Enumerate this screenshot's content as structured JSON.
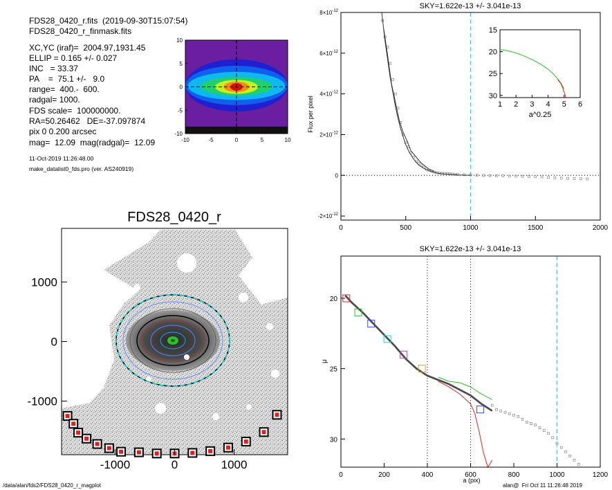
{
  "header_info": {
    "line1": "FDS28_0420_r.fits  (2019-09-30T15:07:54)",
    "line2": "FDS28_0420_r_finmask.fits",
    "params": [
      "XC,YC (iraf)=  2004.97,1931.45",
      "ELLIP = 0.165 +/- 0.027",
      "INC   = 33.37",
      "PA    =  75.1 +/-   9.0",
      "range=  400.-  600.",
      "radgal= 1000.",
      "FDS scale=  100000000.",
      "RA=50.26462   DE=-37.097874",
      "pix 0 0.200 arcsec",
      "mag=  12.09  mag(radgal)=  12.09"
    ],
    "date": "11-Oct-2019 11:26:48.00",
    "program": "make_datalist0_fds.pro (ver. AS240919)"
  },
  "footer": {
    "left": "/data/alan/fds2/FDS28_0420_r_magplot",
    "right": "alan@  Fri Oct 11 11:26:48 2019"
  },
  "colors": {
    "cyan": "#00e0e0",
    "green": "#2fc02f",
    "red": "#e02020",
    "blue": "#3050e0",
    "magenta": "#d030d0",
    "gray": "#909090"
  },
  "chart_data": [
    {
      "id": "contour_map",
      "type": "heatmap",
      "xlim": [
        -10,
        10
      ],
      "ylim": [
        -10,
        10
      ],
      "xticks": [
        "-10",
        "-5",
        "0",
        "5",
        "10"
      ],
      "yticks": [
        "-10",
        "-5",
        "0",
        "5",
        "10"
      ],
      "cross_color": "#000000"
    },
    {
      "id": "galaxy_image",
      "type": "heatmap",
      "title": "FDS28_0420_r",
      "xlim": [
        -1900,
        1900
      ],
      "ylim": [
        -1900,
        1900
      ],
      "xticks": [
        "-1000",
        "0",
        "1000"
      ],
      "yticks": [
        "-1000",
        "0",
        "1000"
      ],
      "markers_x": [
        -1800,
        -1700,
        -1620,
        -1480,
        -1300,
        -1100,
        -900,
        -600,
        -300,
        0,
        300,
        600,
        900,
        1200,
        1500,
        1720
      ],
      "markers_y": [
        -1250,
        -1380,
        -1530,
        -1630,
        -1720,
        -1790,
        -1850,
        -1860,
        -1880,
        -1880,
        -1870,
        -1840,
        -1780,
        -1680,
        -1520,
        -1230
      ]
    },
    {
      "id": "flux_profile",
      "type": "line",
      "title": "SKY=1.622e-13 +/- 3.041e-13",
      "xlabel": "",
      "ylabel": "Flux per pixel",
      "xlim": [
        0,
        2000
      ],
      "ylim": [
        -2.2e-12,
        8e-12
      ],
      "xticks": [
        {
          "v": 0,
          "t": "0"
        },
        {
          "v": 500,
          "t": "500"
        },
        {
          "v": 1000,
          "t": "1000"
        },
        {
          "v": 1500,
          "t": "1500"
        },
        {
          "v": 2000,
          "t": "2000"
        }
      ],
      "yticks": [
        {
          "v": -2e-12,
          "m": "-2",
          "e": "-12"
        },
        {
          "v": 0,
          "m": "0",
          "e": ""
        },
        {
          "v": 2e-12,
          "m": "2",
          "e": "-12"
        },
        {
          "v": 4e-12,
          "m": "4",
          "e": "-12"
        },
        {
          "v": 6e-12,
          "m": "6",
          "e": "-12"
        },
        {
          "v": 8e-12,
          "m": "8",
          "e": "-12"
        }
      ],
      "vline": 1000,
      "series": [
        {
          "x": [
            315,
            340,
            360,
            380,
            400,
            420,
            440,
            460,
            480,
            500,
            530,
            560,
            600,
            650,
            700,
            750,
            800,
            900,
            1000
          ],
          "y": [
            8e-12,
            6.6e-12,
            5.7e-12,
            4.8e-12,
            4.1e-12,
            3.4e-12,
            2.8e-12,
            2.3e-12,
            1.9e-12,
            1.5e-12,
            1.1e-12,
            8e-13,
            5e-13,
            3e-13,
            1.8e-13,
            1e-13,
            6e-14,
            2e-14,
            0
          ]
        },
        {
          "x": [
            330,
            360,
            390,
            420,
            450,
            480,
            510,
            540,
            580,
            620,
            680,
            720
          ],
          "y": [
            7.2e-12,
            5.9e-12,
            4.5e-12,
            3.6e-12,
            2.7e-12,
            2.1e-12,
            1.7e-12,
            1.2e-12,
            9e-13,
            6e-13,
            3e-13,
            2e-13
          ]
        }
      ],
      "points_x": [
        320,
        340,
        360,
        380,
        400,
        420,
        440,
        460,
        480,
        500,
        520,
        540,
        560,
        580,
        600,
        620,
        640,
        660,
        680,
        700,
        720,
        740,
        760,
        780,
        800,
        820,
        840,
        860,
        880,
        900,
        950,
        1000,
        1050,
        1100,
        1150,
        1200,
        1250,
        1300,
        1350,
        1400,
        1450,
        1500,
        1550,
        1600,
        1650,
        1700,
        1750,
        1800,
        1850,
        1900
      ],
      "points_y": [
        7.6e-12,
        6.8e-12,
        6.3e-12,
        5.5e-12,
        4.7e-12,
        4e-12,
        3.3e-12,
        2.6e-12,
        2e-12,
        1.6e-12,
        1.4e-12,
        1.1e-12,
        9e-13,
        7e-13,
        6e-13,
        5e-13,
        4e-13,
        3e-13,
        2.5e-13,
        2e-13,
        1.6e-13,
        1.3e-13,
        1.1e-13,
        1e-13,
        9e-14,
        8e-14,
        7e-14,
        6e-14,
        5e-14,
        4e-14,
        3e-14,
        2e-14,
        0,
        -1e-14,
        -2e-14,
        -3e-14,
        -3e-14,
        -4e-14,
        -4e-14,
        -5e-14,
        -6e-14,
        -7e-14,
        -8e-14,
        -1e-13,
        -1.2e-13,
        -1.4e-13,
        -1.5e-13,
        -1.6e-13,
        -1.7e-13,
        -1.8e-13
      ]
    },
    {
      "id": "inset_profile",
      "type": "line",
      "xlabel": "a^0.25",
      "xlim": [
        1,
        6
      ],
      "ylim": [
        15,
        30.5
      ],
      "xticks": [
        "1",
        "2",
        "3",
        "4",
        "5",
        "6"
      ],
      "yticks": [
        "15",
        "20",
        "25",
        "30"
      ],
      "green": {
        "x": [
          1.0,
          1.5,
          2.0,
          2.5,
          3.0,
          3.5,
          4.0,
          4.3,
          4.6,
          4.8,
          5.0
        ],
        "y": [
          19.5,
          19.8,
          20.3,
          21.0,
          21.8,
          22.8,
          24.0,
          25.0,
          26.2,
          27.2,
          28.5
        ]
      },
      "red": {
        "x": [
          4.6,
          4.8,
          4.9,
          5.0,
          5.1
        ],
        "y": [
          26.4,
          27.3,
          28.2,
          29.2,
          30.5
        ]
      }
    },
    {
      "id": "mu_profile",
      "type": "line",
      "title": "SKY=1.622e-13 +/- 3.041e-13",
      "xlabel": "a (pix)",
      "ylabel": "μ",
      "xlim": [
        0,
        1200
      ],
      "ylim": [
        32,
        17
      ],
      "xticks": [
        "0",
        "200",
        "400",
        "600",
        "800",
        "1000",
        "1200"
      ],
      "yticks": [
        "20",
        "25",
        "30"
      ],
      "vlines_dotted": [
        400,
        600
      ],
      "vline_cyan": 1000,
      "main_curve": {
        "x": [
          20,
          50,
          100,
          150,
          200,
          250,
          300,
          350,
          400,
          450,
          500,
          550,
          600,
          650,
          700
        ],
        "y": [
          19.8,
          20.3,
          21.0,
          21.8,
          22.6,
          23.4,
          24.3,
          25.0,
          25.5,
          25.8,
          26.1,
          26.5,
          26.9,
          27.5,
          28.0
        ]
      },
      "green_curve": {
        "x": [
          450,
          500,
          550,
          600,
          650,
          700
        ],
        "y": [
          25.6,
          25.9,
          26.0,
          26.3,
          26.8,
          27.2
        ]
      },
      "red_curve": {
        "x": [
          450,
          500,
          550,
          600,
          620,
          640,
          660,
          680,
          700
        ],
        "y": [
          25.9,
          26.3,
          26.8,
          27.5,
          28.2,
          29.5,
          31.0,
          32.0,
          31.5
        ]
      },
      "squares": [
        {
          "x": 25,
          "y": 20.0,
          "c": "#e02020"
        },
        {
          "x": 80,
          "y": 21.0,
          "c": "#2fc02f"
        },
        {
          "x": 140,
          "y": 21.8,
          "c": "#3050e0"
        },
        {
          "x": 215,
          "y": 22.9,
          "c": "#00e0e0"
        },
        {
          "x": 290,
          "y": 24.0,
          "c": "#d030d0"
        },
        {
          "x": 375,
          "y": 25.0,
          "c": "#e0a020"
        },
        {
          "x": 645,
          "y": 27.9,
          "c": "#3050e0"
        }
      ],
      "points_x": [
        700,
        720,
        740,
        760,
        780,
        800,
        820,
        840,
        860,
        880,
        900,
        920,
        940,
        960,
        980,
        1000,
        1020,
        1040,
        1060,
        1080,
        1100
      ],
      "points_y": [
        27.6,
        27.9,
        28.0,
        28.1,
        28.2,
        28.3,
        28.4,
        28.6,
        28.8,
        28.9,
        29.0,
        29.2,
        29.4,
        29.6,
        29.9,
        30.3,
        30.6,
        30.9,
        31.2,
        31.5,
        31.8
      ]
    }
  ]
}
